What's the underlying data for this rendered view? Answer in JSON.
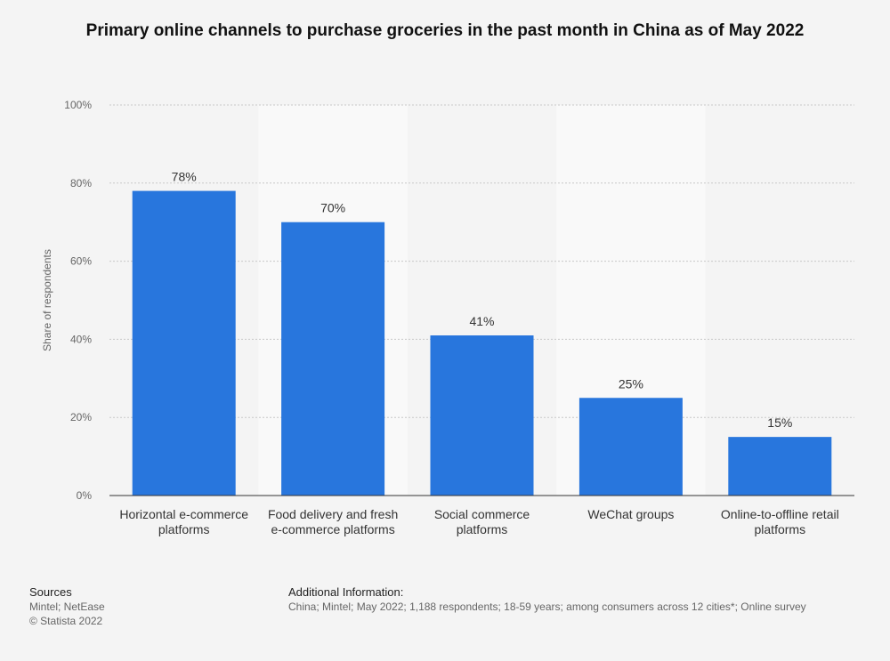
{
  "chart_data": {
    "type": "bar",
    "title": "Primary online channels to purchase groceries in the past month in China as of May 2022",
    "y_label": "Share of respondents",
    "categories": [
      "Horizontal e-commerce platforms",
      "Food delivery and fresh e-commerce platforms",
      "Social commerce platforms",
      "WeChat groups",
      "Online-to-offline retail platforms"
    ],
    "values": [
      78,
      70,
      41,
      25,
      15
    ],
    "value_labels": [
      "78%",
      "70%",
      "41%",
      "25%",
      "15%"
    ],
    "color": "#2876dd",
    "ylim": [
      0,
      100
    ],
    "yticks": [
      {
        "value": 0,
        "label": "0%"
      },
      {
        "value": 20,
        "label": "20%"
      },
      {
        "value": 40,
        "label": "40%"
      },
      {
        "value": 60,
        "label": "60%"
      },
      {
        "value": 80,
        "label": "80%"
      },
      {
        "value": 100,
        "label": "100%"
      }
    ],
    "grid": true
  },
  "sources": {
    "title": "Sources",
    "lines": [
      "Mintel; NetEase",
      "© Statista 2022"
    ]
  },
  "additional_info": {
    "title": "Additional Information:",
    "text": "China; Mintel; May 2022; 1,188 respondents; 18-59 years; among consumers across 12 cities*; Online survey"
  }
}
